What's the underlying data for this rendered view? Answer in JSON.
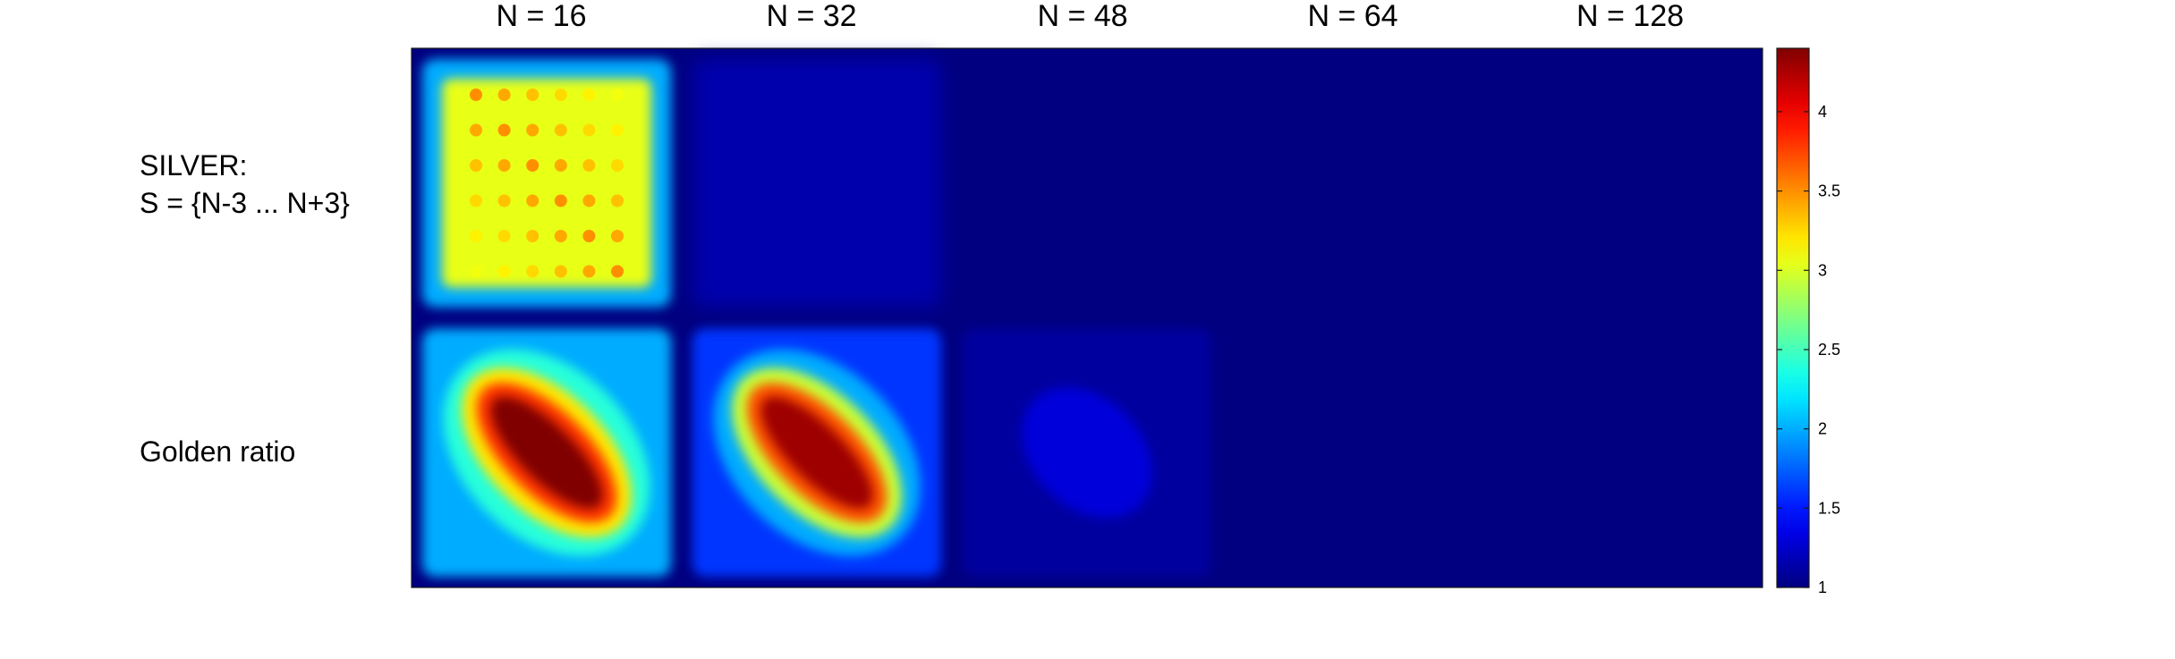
{
  "chart_data": {
    "type": "heatmap",
    "columns": [
      "N = 16",
      "N = 32",
      "N = 48",
      "N = 64",
      "N = 128"
    ],
    "rows": [
      {
        "label_lines": [
          "SILVER:",
          "S = {N-3 ... N+3}"
        ]
      },
      {
        "label_lines": [
          "Golden ratio"
        ]
      }
    ],
    "colormap": "jet",
    "colorbar": {
      "range": [
        1,
        4.4
      ],
      "ticks": [
        1,
        1.5,
        2,
        2.5,
        3,
        3.5,
        4
      ],
      "tick_labels": [
        "1",
        "1.5",
        "2",
        "2.5",
        "3",
        "3.5",
        "4"
      ],
      "placement": "right"
    },
    "panel_summary": [
      {
        "row": 0,
        "col": 0,
        "pattern": "grid",
        "peak": 3.5,
        "edge": 2.0
      },
      {
        "row": 0,
        "col": 1,
        "pattern": "flat",
        "peak": 1.15,
        "edge": 1.15
      },
      {
        "row": 0,
        "col": 2,
        "pattern": "flat",
        "peak": 1.0,
        "edge": 1.0
      },
      {
        "row": 0,
        "col": 3,
        "pattern": "flat",
        "peak": 1.0,
        "edge": 1.0
      },
      {
        "row": 0,
        "col": 4,
        "pattern": "flat",
        "peak": 1.0,
        "edge": 1.0
      },
      {
        "row": 1,
        "col": 0,
        "pattern": "diagonal",
        "peak": 4.4,
        "edge": 2.0
      },
      {
        "row": 1,
        "col": 1,
        "pattern": "diagonal",
        "peak": 4.3,
        "edge": 1.6
      },
      {
        "row": 1,
        "col": 2,
        "pattern": "faint",
        "peak": 1.3,
        "edge": 1.1
      },
      {
        "row": 1,
        "col": 3,
        "pattern": "flat",
        "peak": 1.0,
        "edge": 1.0
      },
      {
        "row": 1,
        "col": 4,
        "pattern": "flat",
        "peak": 1.0,
        "edge": 1.0
      }
    ]
  }
}
